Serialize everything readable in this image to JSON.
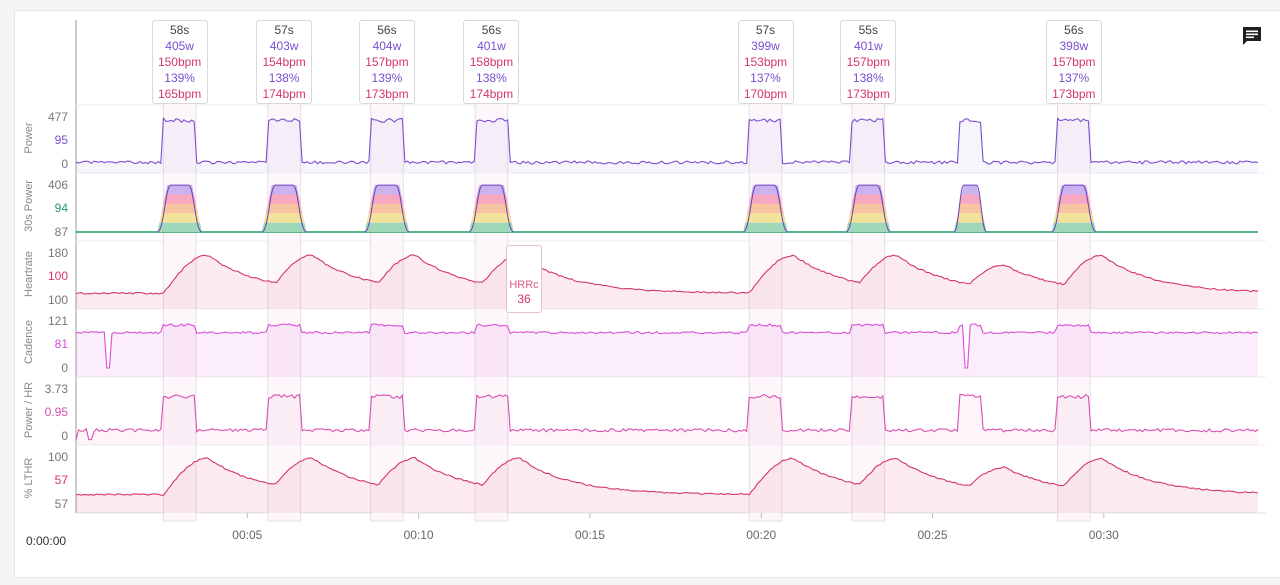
{
  "chart_data": {
    "type": "line",
    "x_axis": {
      "start_label": "0:00:00",
      "ticks": [
        "00:05",
        "00:10",
        "00:15",
        "00:20",
        "00:25",
        "00:30"
      ],
      "tick_minutes": [
        5,
        10,
        15,
        20,
        25,
        30
      ],
      "range_minutes": [
        0,
        34.5
      ]
    },
    "intervals": [
      {
        "duration": "58s",
        "power": "405w",
        "avg_hr": "150bpm",
        "pct": "139%",
        "max_hr": "165bpm",
        "start_min": 2.55,
        "end_min": 3.5
      },
      {
        "duration": "57s",
        "power": "403w",
        "avg_hr": "154bpm",
        "pct": "138%",
        "max_hr": "174bpm",
        "start_min": 5.6,
        "end_min": 6.55
      },
      {
        "duration": "56s",
        "power": "404w",
        "avg_hr": "157bpm",
        "pct": "139%",
        "max_hr": "173bpm",
        "start_min": 8.6,
        "end_min": 9.55
      },
      {
        "duration": "56s",
        "power": "401w",
        "avg_hr": "158bpm",
        "pct": "138%",
        "max_hr": "174bpm",
        "start_min": 11.65,
        "end_min": 12.6
      },
      {
        "duration": "57s",
        "power": "399w",
        "avg_hr": "153bpm",
        "pct": "137%",
        "max_hr": "170bpm",
        "start_min": 19.65,
        "end_min": 20.6
      },
      {
        "duration": "55s",
        "power": "401w",
        "avg_hr": "157bpm",
        "pct": "138%",
        "max_hr": "173bpm",
        "start_min": 22.65,
        "end_min": 23.6
      },
      {
        "duration": "56s",
        "power": "398w",
        "avg_hr": "157bpm",
        "pct": "137%",
        "max_hr": "173bpm",
        "start_min": 28.65,
        "end_min": 29.6
      }
    ],
    "extra_effort_min": [
      25.8,
      26.4
    ],
    "hrrc": {
      "label": "HRRc",
      "value": "36",
      "at_min": 12.9
    },
    "rows": [
      {
        "label": "Power",
        "ticks": [
          "477",
          "95",
          "0"
        ],
        "color": "#7b4fd0",
        "baseline": 0.02,
        "peak": 0.9,
        "kind": "square"
      },
      {
        "label": "30s Power",
        "ticks": [
          "406",
          "94",
          "87"
        ],
        "color": "#20a060",
        "baseline": 0.0,
        "peak": 0.92,
        "kind": "zones"
      },
      {
        "label": "Heartrate",
        "ticks": [
          "180",
          "100",
          "100"
        ],
        "color": "#d5366a",
        "baseline": 0.15,
        "peak": 0.88,
        "kind": "hr"
      },
      {
        "label": "Cadence",
        "ticks": [
          "121",
          "81",
          "0"
        ],
        "color": "#d94fd8",
        "baseline": 0.7,
        "peak": 0.82,
        "kind": "cadence"
      },
      {
        "label": "Power / HR",
        "ticks": [
          "3.73",
          "0.95",
          "0"
        ],
        "color": "#d94fb0",
        "baseline": 0.1,
        "peak": 0.82,
        "kind": "square"
      },
      {
        "label": "% LTHR",
        "ticks": [
          "100",
          "57",
          "57"
        ],
        "color": "#d5366a",
        "baseline": 0.2,
        "peak": 0.9,
        "kind": "hr"
      }
    ],
    "zone_colors": [
      "#9fd8b8",
      "#f5e29a",
      "#f7c4a0",
      "#f5a8c0",
      "#c9b3ee"
    ]
  },
  "toolbar": {
    "notes_icon": "comment-icon"
  }
}
